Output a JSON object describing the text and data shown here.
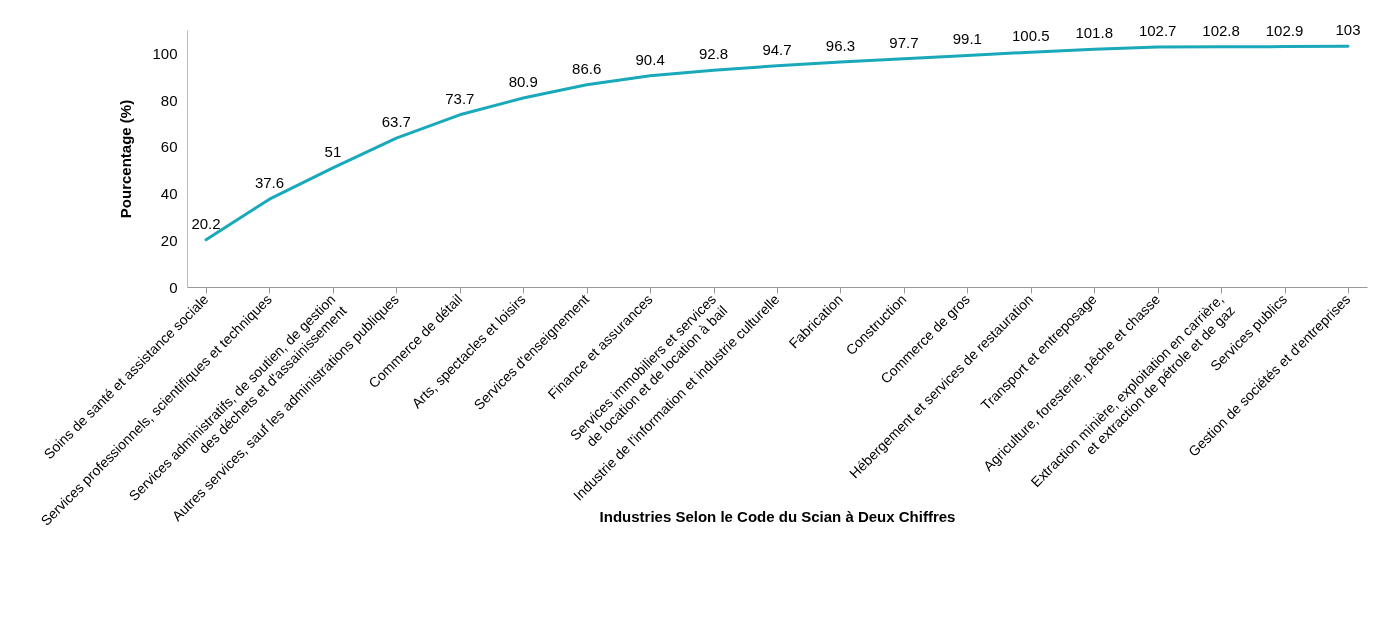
{
  "chart_data": {
    "type": "line",
    "xlabel": "Industries Selon le Code du Scian à Deux Chiffres",
    "ylabel": "Pourcentage (%)",
    "categories": [
      "Soins de santé et assistance sociale",
      "Services professionnels, scientifiques et techniques",
      "Services administratifs, de soutien, de gestion\ndes déchets et d'assainissement",
      "Autres services, sauf les administrations publiques",
      "Commerce de détail",
      "Arts, spectacles et loisirs",
      "Services d'enseignement",
      "Finance et assurances",
      "Services immobiliers et services\nde location et de location à bail",
      "Industrie de l'information et industrie culturelle",
      "Fabrication",
      "Construction",
      "Commerce de gros",
      "Hébergement et services de restauration",
      "Transport et entreposage",
      "Agriculture, foresterie, pêche et chasse",
      "Extraction minière, exploitation en carrière,\net extraction de pétrole et de gaz",
      "Services publics",
      "Gestion de sociétés et d'entreprises"
    ],
    "series": [
      {
        "color": "#1aa9ba",
        "values": [
          20.2,
          37.6,
          51,
          63.7,
          73.7,
          80.9,
          86.6,
          90.4,
          92.8,
          94.7,
          96.3,
          97.7,
          99.1,
          100.5,
          101.8,
          102.7,
          102.8,
          102.9,
          103
        ]
      }
    ],
    "ylim": [
      0,
      110
    ],
    "yticks": [
      0,
      20,
      40,
      60,
      80,
      100
    ],
    "grid": false,
    "legend": false,
    "data_labels": true,
    "marker": "none",
    "line_style": "solid"
  }
}
